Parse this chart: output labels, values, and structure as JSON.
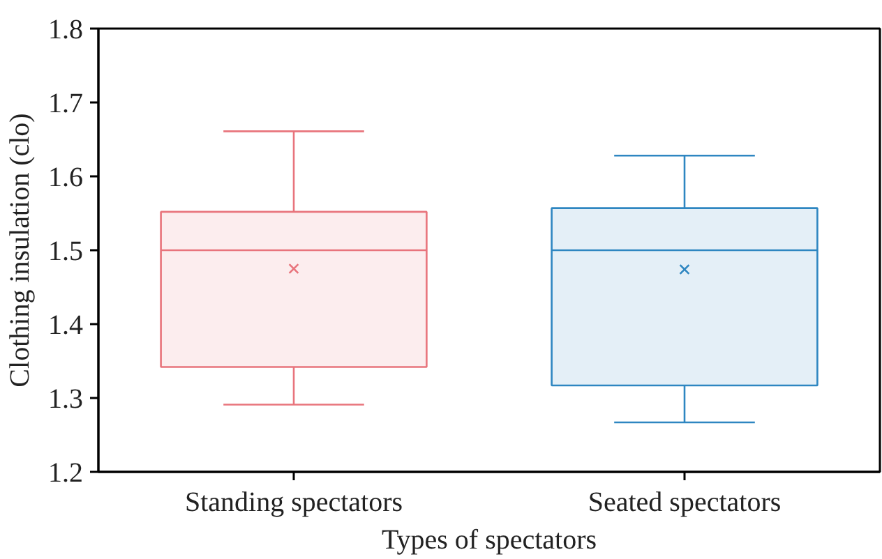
{
  "chart_data": {
    "type": "box",
    "xlabel": "Types of spectators",
    "ylabel": "Clothing insulation (clo)",
    "categories": [
      "Standing spectators",
      "Seated spectators"
    ],
    "colors": [
      "#e8747c",
      "#2e86c1"
    ],
    "boxes": [
      {
        "low": 1.291,
        "q1": 1.342,
        "median": 1.5,
        "q3": 1.552,
        "high": 1.661,
        "mean": 1.475
      },
      {
        "low": 1.267,
        "q1": 1.317,
        "median": 1.5,
        "q3": 1.557,
        "high": 1.628,
        "mean": 1.474
      }
    ],
    "ylim": [
      1.2,
      1.8
    ],
    "yticks": [
      1.2,
      1.3,
      1.4,
      1.5,
      1.6,
      1.7,
      1.8
    ],
    "grid": false
  }
}
